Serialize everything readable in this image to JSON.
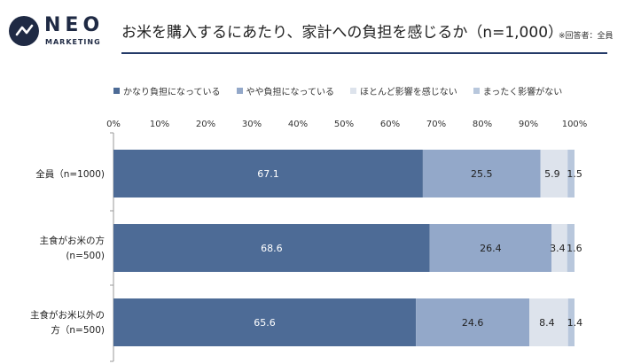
{
  "logo": {
    "name": "NEO",
    "sub": "MARKETING"
  },
  "title": "お米を購入するにあたり、家計への負担を感じるか（n=1,000）",
  "note": "※回答者：全員",
  "colors": {
    "heavy": "#4d6b96",
    "some": "#93a8c9",
    "little": "#dde3ec",
    "none": "#b8c7dc",
    "axis": "#999999",
    "rule": "#243a68"
  },
  "chart_data": {
    "type": "bar",
    "orientation": "horizontal",
    "stacked": true,
    "xlim": [
      0,
      100
    ],
    "x_ticks": [
      "0%",
      "10%",
      "20%",
      "30%",
      "40%",
      "50%",
      "60%",
      "70%",
      "80%",
      "90%",
      "100%"
    ],
    "categories": [
      [
        "全員（n=1000)"
      ],
      [
        "主食がお米の方",
        "(n=500)"
      ],
      [
        "主食がお米以外の",
        "方（n=500)"
      ]
    ],
    "series": [
      {
        "name": "かなり負担になっている",
        "color": "#4d6b96",
        "label_color": "#ffffff",
        "values": [
          67.1,
          68.6,
          65.6
        ]
      },
      {
        "name": "やや負担になっている",
        "color": "#93a8c9",
        "label_color": "#222222",
        "values": [
          25.5,
          26.4,
          24.6
        ]
      },
      {
        "name": "ほとんど影響を感じない",
        "color": "#dde3ec",
        "label_color": "#222222",
        "values": [
          5.9,
          3.4,
          8.4
        ]
      },
      {
        "name": "まったく影響がない",
        "color": "#b8c7dc",
        "label_color": "#222222",
        "values": [
          1.5,
          1.6,
          1.4
        ]
      }
    ],
    "grid": false,
    "legend_position": "top-left"
  }
}
